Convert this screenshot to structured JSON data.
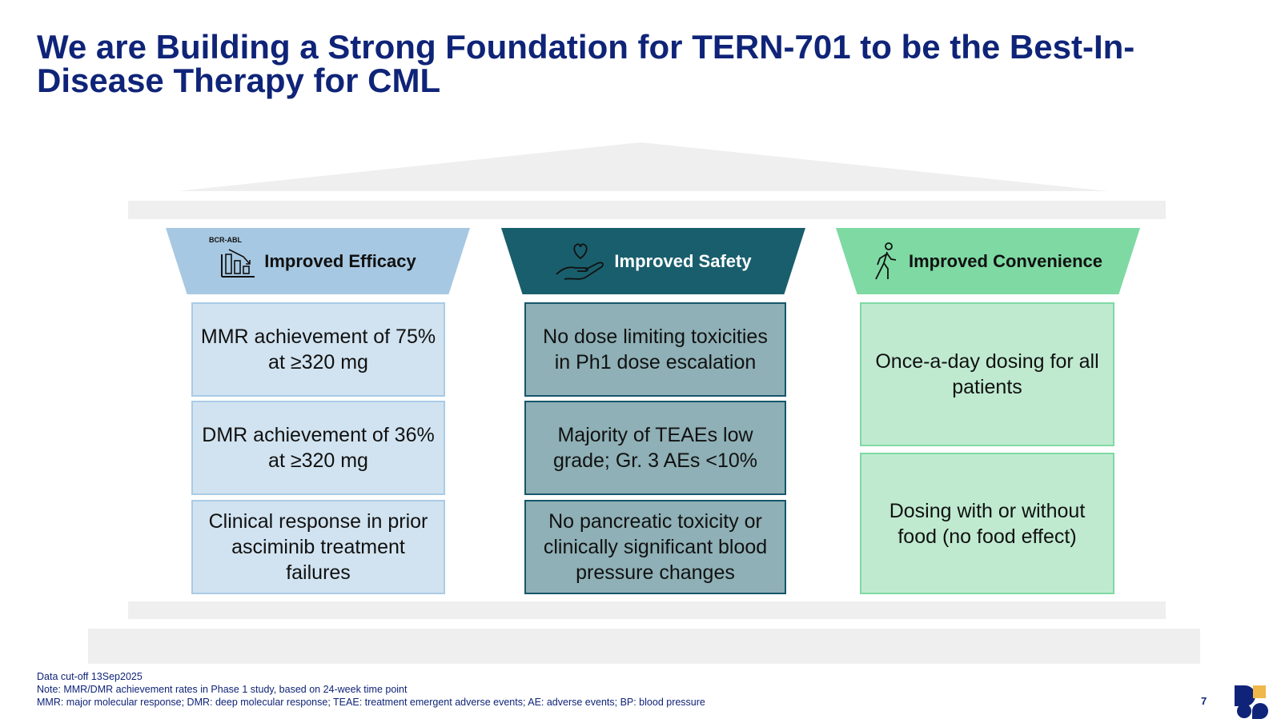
{
  "title": {
    "line1": "We are Building a Strong Foundation for TERN-701 to be the Best-In-",
    "line2": "Disease Therapy for CML"
  },
  "pillars": {
    "efficacy": {
      "heading": "Improved Efficacy",
      "icon": "bar-chart-down-icon",
      "icon_label": "BCR-ABL",
      "color": "#a7c8e2",
      "boxes": [
        "MMR achievement of 75% at ≥320 mg",
        "DMR achievement of 36% at ≥320 mg",
        "Clinical response in prior asciminib treatment failures"
      ]
    },
    "safety": {
      "heading": "Improved Safety",
      "icon": "hand-heart-icon",
      "color": "#195e6c",
      "boxes": [
        "No dose limiting toxicities in Ph1 dose escalation",
        "Majority of TEAEs low grade; Gr. 3 AEs <10%",
        "No pancreatic toxicity or clinically significant blood pressure changes"
      ]
    },
    "convenience": {
      "heading": "Improved Convenience",
      "icon": "walking-person-icon",
      "color": "#7ed9a3",
      "boxes": [
        "Once-a-day dosing for all patients",
        "Dosing with or without food (no food effect)"
      ]
    }
  },
  "footnotes": [
    "Data cut-off 13Sep2025",
    "Note: MMR/DMR achievement rates in Phase 1 study, based on 24-week time point",
    "MMR: major molecular response; DMR: deep molecular response; TEAE: treatment emergent adverse events; AE: adverse events; BP: blood pressure"
  ],
  "page_number": "7",
  "logo": "company-logo-icon",
  "colors": {
    "title": "#0f2478",
    "structure_gray": "#efefef",
    "logo_navy": "#0f2478",
    "logo_gold": "#f0b84a"
  }
}
